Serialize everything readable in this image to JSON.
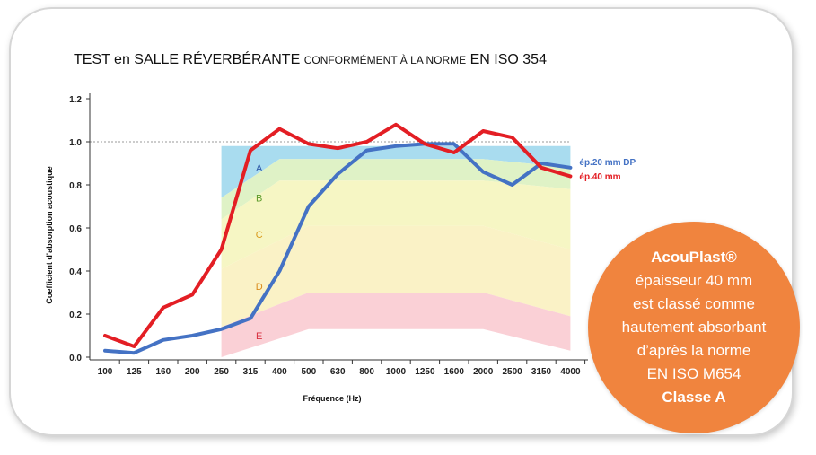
{
  "title": {
    "part1": "TEST en SALLE RÉVERBÉRANTE ",
    "part2": "CONFORMÉMENT À LA NORME",
    "part3": " EN ISO 354"
  },
  "badge": {
    "line1": "AcouPlast®",
    "line2": "épaisseur 40 mm",
    "line3": "est classé comme",
    "line4": "hautement absorbant",
    "line5": "d’après la norme",
    "line6": "EN ISO M654",
    "line7": "Classe A"
  },
  "colors": {
    "series_dp": "#4472c4",
    "series_40": "#e31e24",
    "zone_a": "#a9dcef",
    "zone_b": "#dff2c6",
    "zone_c": "#f6f6c4",
    "zone_d": "#faf2c6",
    "zone_e": "#fad0d6",
    "badge": "#f0843e"
  },
  "chart_data": {
    "type": "line",
    "title": "TEST en SALLE RÉVERBÉRANTE CONFORMÉMENT À LA NORME EN ISO 354",
    "xlabel": "Fréquence (Hz)",
    "ylabel": "Coefficient d'absorption acoustique",
    "categories": [
      "100",
      "125",
      "160",
      "200",
      "250",
      "315",
      "400",
      "500",
      "630",
      "800",
      "1000",
      "1250",
      "1600",
      "2000",
      "2500",
      "3150",
      "4000"
    ],
    "yticks": [
      "0.0",
      "0.2",
      "0.4",
      "0.6",
      "0.8",
      "1.0",
      "1.2"
    ],
    "ylim": [
      0,
      1.2
    ],
    "reference_line": 1.0,
    "zones": [
      {
        "label": "A",
        "color_key": "zone_a"
      },
      {
        "label": "B",
        "color_key": "zone_b"
      },
      {
        "label": "C",
        "color_key": "zone_c"
      },
      {
        "label": "D",
        "color_key": "zone_d"
      },
      {
        "label": "E",
        "color_key": "zone_e"
      }
    ],
    "series": [
      {
        "name": "ép.20 mm DP",
        "color_key": "series_dp",
        "values": [
          0.03,
          0.02,
          0.08,
          0.1,
          0.13,
          0.18,
          0.4,
          0.7,
          0.85,
          0.96,
          0.98,
          0.99,
          0.99,
          0.86,
          0.8,
          0.9,
          0.88
        ]
      },
      {
        "name": "ép.40 mm",
        "color_key": "series_40",
        "values": [
          0.1,
          0.05,
          0.23,
          0.29,
          0.5,
          0.96,
          1.06,
          0.99,
          0.97,
          1.0,
          1.08,
          0.99,
          0.95,
          1.05,
          1.02,
          0.88,
          0.84
        ]
      }
    ]
  }
}
